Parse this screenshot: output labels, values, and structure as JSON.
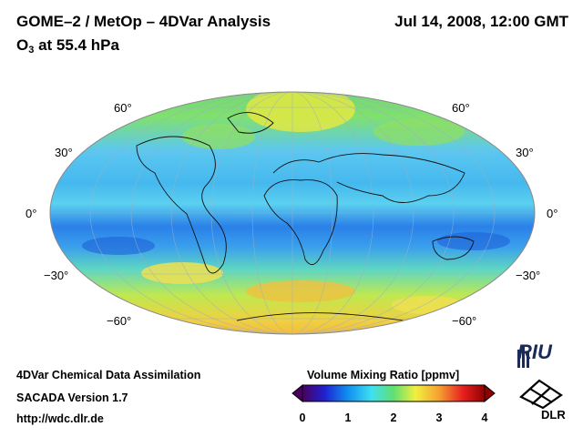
{
  "header": {
    "title": "GOME–2 / MetOp – 4DVar Analysis",
    "subtitle_prefix": "O",
    "subtitle_sub": "3",
    "subtitle_suffix": " at 55.4 hPa",
    "datetime": "Jul 14, 2008, 12:00 GMT"
  },
  "map": {
    "projection": "Mollweide (global ellipse)",
    "lat_labels_left": [
      "60°",
      "30°",
      "0°",
      "−30°",
      "−60°"
    ],
    "lat_labels_right": [
      "60°",
      "30°",
      "0°",
      "−30°",
      "−60°"
    ],
    "colors": {
      "low": "#1e6fe0",
      "mid_low": "#5cc8f0",
      "mid": "#7fe08a",
      "mid_high": "#f0f040",
      "high": "#f5a030"
    }
  },
  "colorbar": {
    "title": "Volume Mixing Ratio [ppmv]",
    "ticks": [
      "0",
      "1",
      "2",
      "3",
      "4"
    ],
    "range": [
      0,
      4
    ],
    "stops": [
      "#4a0060",
      "#2020d0",
      "#1090f0",
      "#40e0f0",
      "#60e070",
      "#f0f040",
      "#f5a030",
      "#e82020",
      "#900000"
    ]
  },
  "footer": {
    "line1": "4DVar Chemical Data Assimilation",
    "line2": "SACADA Version 1.7",
    "line3": "http://wdc.dlr.de"
  },
  "logos": {
    "riu": "RIU",
    "dlr": "DLR"
  }
}
